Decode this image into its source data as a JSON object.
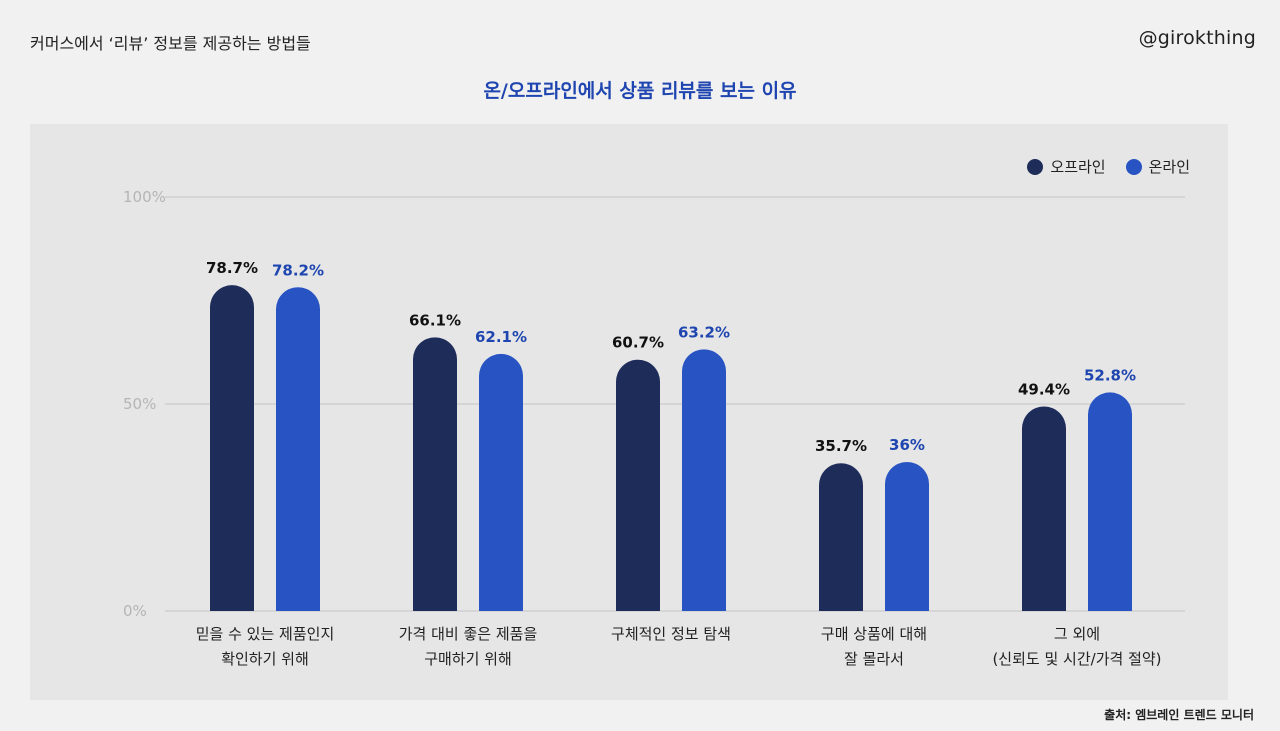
{
  "header": {
    "doc_title": "커머스에서 ‘리뷰’ 정보를 제공하는 방법들",
    "brand": "@girokthing"
  },
  "footer": {
    "source": "출처: 엠브레인 트렌드 모니터"
  },
  "colors": {
    "offline": "#1e2c5a",
    "online": "#2853c2",
    "offline_label": "#111111",
    "online_label": "#1f46b0",
    "grid": "#cfcfcf",
    "tick": "#b5b5b5"
  },
  "chart_data": {
    "type": "bar",
    "title": "온/오프라인에서 상품 리뷰를 보는 이유",
    "categories": [
      [
        "믿을 수 있는 제품인지",
        "확인하기 위해"
      ],
      [
        "가격 대비 좋은 제품을",
        "구매하기 위해"
      ],
      [
        "구체적인 정보 탐색"
      ],
      [
        "구매 상품에 대해",
        "잘 몰라서"
      ],
      [
        "그 외에",
        "(신뢰도 및 시간/가격 절약)"
      ]
    ],
    "series": [
      {
        "name": "오프라인",
        "values": [
          78.7,
          66.1,
          60.7,
          35.7,
          49.4
        ],
        "labels": [
          "78.7%",
          "66.1%",
          "60.7%",
          "35.7%",
          "49.4%"
        ]
      },
      {
        "name": "온라인",
        "values": [
          78.2,
          62.1,
          63.2,
          36,
          52.8
        ],
        "labels": [
          "78.2%",
          "62.1%",
          "63.2%",
          "36%",
          "52.8%"
        ]
      }
    ],
    "ylim": [
      0,
      100
    ],
    "yticks": [
      "0%",
      "50%",
      "100%"
    ],
    "ytick_values": [
      0,
      50,
      100
    ],
    "grid": true,
    "legend_position": "top-right"
  }
}
